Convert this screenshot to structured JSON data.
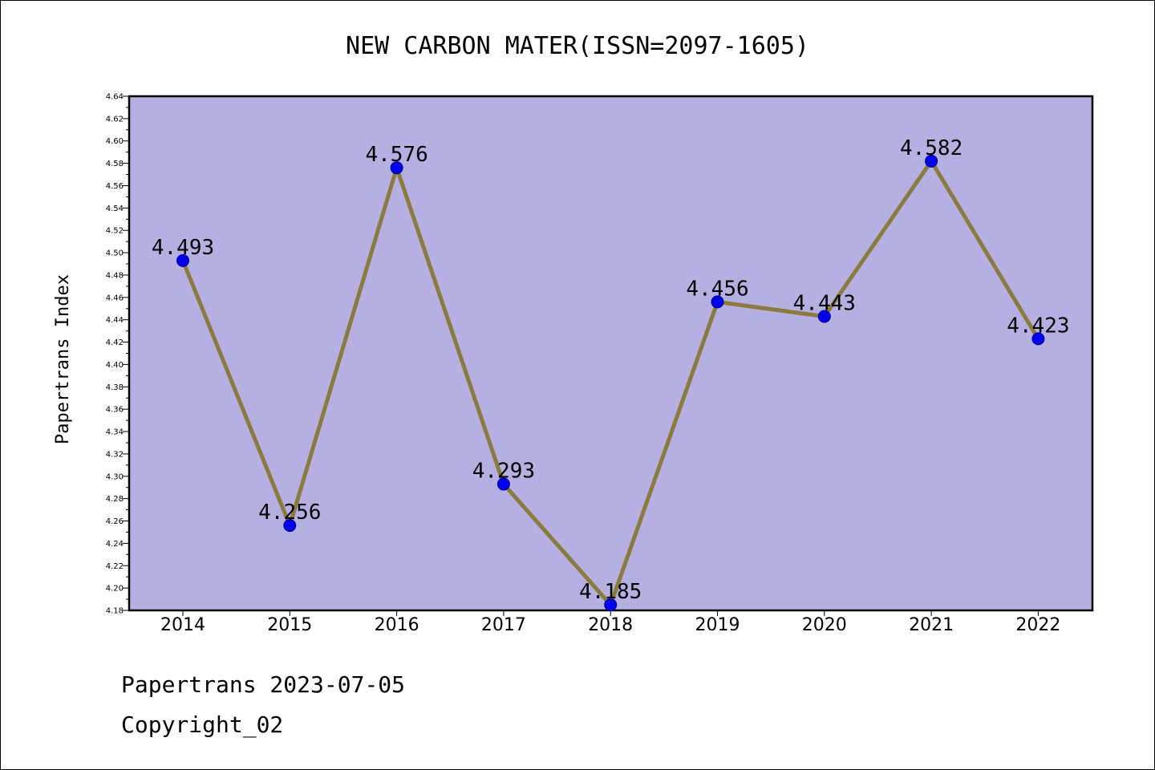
{
  "chart_data": {
    "type": "line",
    "title": "NEW CARBON MATER(ISSN=2097-1605)",
    "xlabel": "",
    "ylabel": "Papertrans Index",
    "categories": [
      "2014",
      "2015",
      "2016",
      "2017",
      "2018",
      "2019",
      "2020",
      "2021",
      "2022"
    ],
    "values": [
      4.493,
      4.256,
      4.576,
      4.293,
      4.185,
      4.456,
      4.443,
      4.582,
      4.423
    ],
    "data_labels": [
      "4.493",
      "4.256",
      "4.576",
      "4.293",
      "4.185",
      "4.456",
      "4.443",
      "4.582",
      "4.423"
    ],
    "ylim": [
      4.18,
      4.64
    ],
    "yticks": [
      "4.18",
      "4.20",
      "4.22",
      "4.24",
      "4.26",
      "4.28",
      "4.30",
      "4.32",
      "4.34",
      "4.36",
      "4.38",
      "4.40",
      "4.42",
      "4.44",
      "4.46",
      "4.48",
      "4.50",
      "4.52",
      "4.54",
      "4.56",
      "4.58",
      "4.60",
      "4.62",
      "4.64"
    ],
    "grid": false,
    "legend": "none",
    "colors": {
      "plot_background": "#b5afe2",
      "line": "#8c7b3e",
      "marker_fill": "#0000ee",
      "marker_edge": "#00008b"
    }
  },
  "footer": {
    "line1": "Papertrans 2023-07-05",
    "line2": "Copyright_02"
  }
}
